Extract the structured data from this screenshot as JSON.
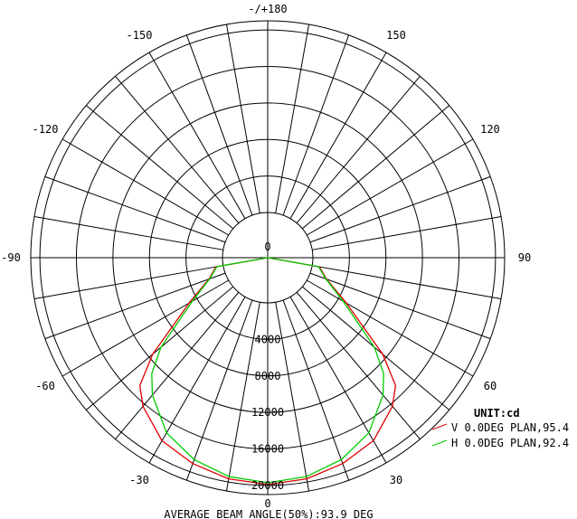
{
  "chart_data": {
    "type": "polar-line",
    "title_top": "-/+180",
    "angle_labels": [
      {
        "angle": 150,
        "text": "150"
      },
      {
        "angle": -150,
        "text": "-150"
      },
      {
        "angle": 120,
        "text": "120"
      },
      {
        "angle": -120,
        "text": "-120"
      },
      {
        "angle": 90,
        "text": "90"
      },
      {
        "angle": -90,
        "text": "-90"
      },
      {
        "angle": 60,
        "text": "60"
      },
      {
        "angle": -60,
        "text": "-60"
      },
      {
        "angle": 30,
        "text": "30"
      },
      {
        "angle": -30,
        "text": "-30"
      },
      {
        "angle": 0,
        "text": "0"
      }
    ],
    "radial_ticks": [
      0,
      4000,
      8000,
      12000,
      16000,
      20000
    ],
    "radial_tick_labels": [
      "0",
      "4000",
      "8000",
      "12000",
      "16000",
      "20000"
    ],
    "rmax": 21000,
    "angle_step_deg": 10,
    "unit": "UNIT:cd",
    "series": [
      {
        "name": "V 0.0DEG PLAN,95.4",
        "color": "#e00000",
        "angles": [
          0,
          10,
          20,
          30,
          40,
          45,
          50,
          60,
          70,
          80,
          90,
          90,
          80,
          70,
          60,
          50,
          45,
          40,
          30,
          20,
          10,
          0
        ],
        "values": [
          19900,
          19650,
          19050,
          18200,
          16300,
          14850,
          11500,
          5000,
          1900,
          800,
          0,
          0,
          800,
          1900,
          5000,
          11500,
          14850,
          16300,
          18200,
          19050,
          19650,
          19900
        ],
        "side": [
          0,
          1,
          1,
          1,
          1,
          1,
          1,
          1,
          1,
          1,
          1,
          -1,
          -1,
          -1,
          -1,
          -1,
          -1,
          -1,
          -1,
          -1,
          -1,
          0
        ]
      },
      {
        "name": "H 0.0DEG PLAN,92.4",
        "color": "#00cc00",
        "angles": [
          0,
          10,
          20,
          30,
          40,
          45,
          50,
          60,
          70,
          80,
          90,
          90,
          80,
          70,
          60,
          50,
          45,
          40,
          30,
          20,
          10,
          0
        ],
        "values": [
          19700,
          19400,
          18600,
          17200,
          14700,
          13000,
          10300,
          4600,
          1800,
          700,
          0,
          0,
          700,
          1800,
          4600,
          10300,
          13000,
          14700,
          17200,
          18600,
          19400,
          19700
        ],
        "side": [
          0,
          1,
          1,
          1,
          1,
          1,
          1,
          1,
          1,
          1,
          1,
          -1,
          -1,
          -1,
          -1,
          -1,
          -1,
          -1,
          -1,
          -1,
          -1,
          0
        ]
      }
    ],
    "footer": "AVERAGE BEAM ANGLE(50%):93.9 DEG"
  }
}
